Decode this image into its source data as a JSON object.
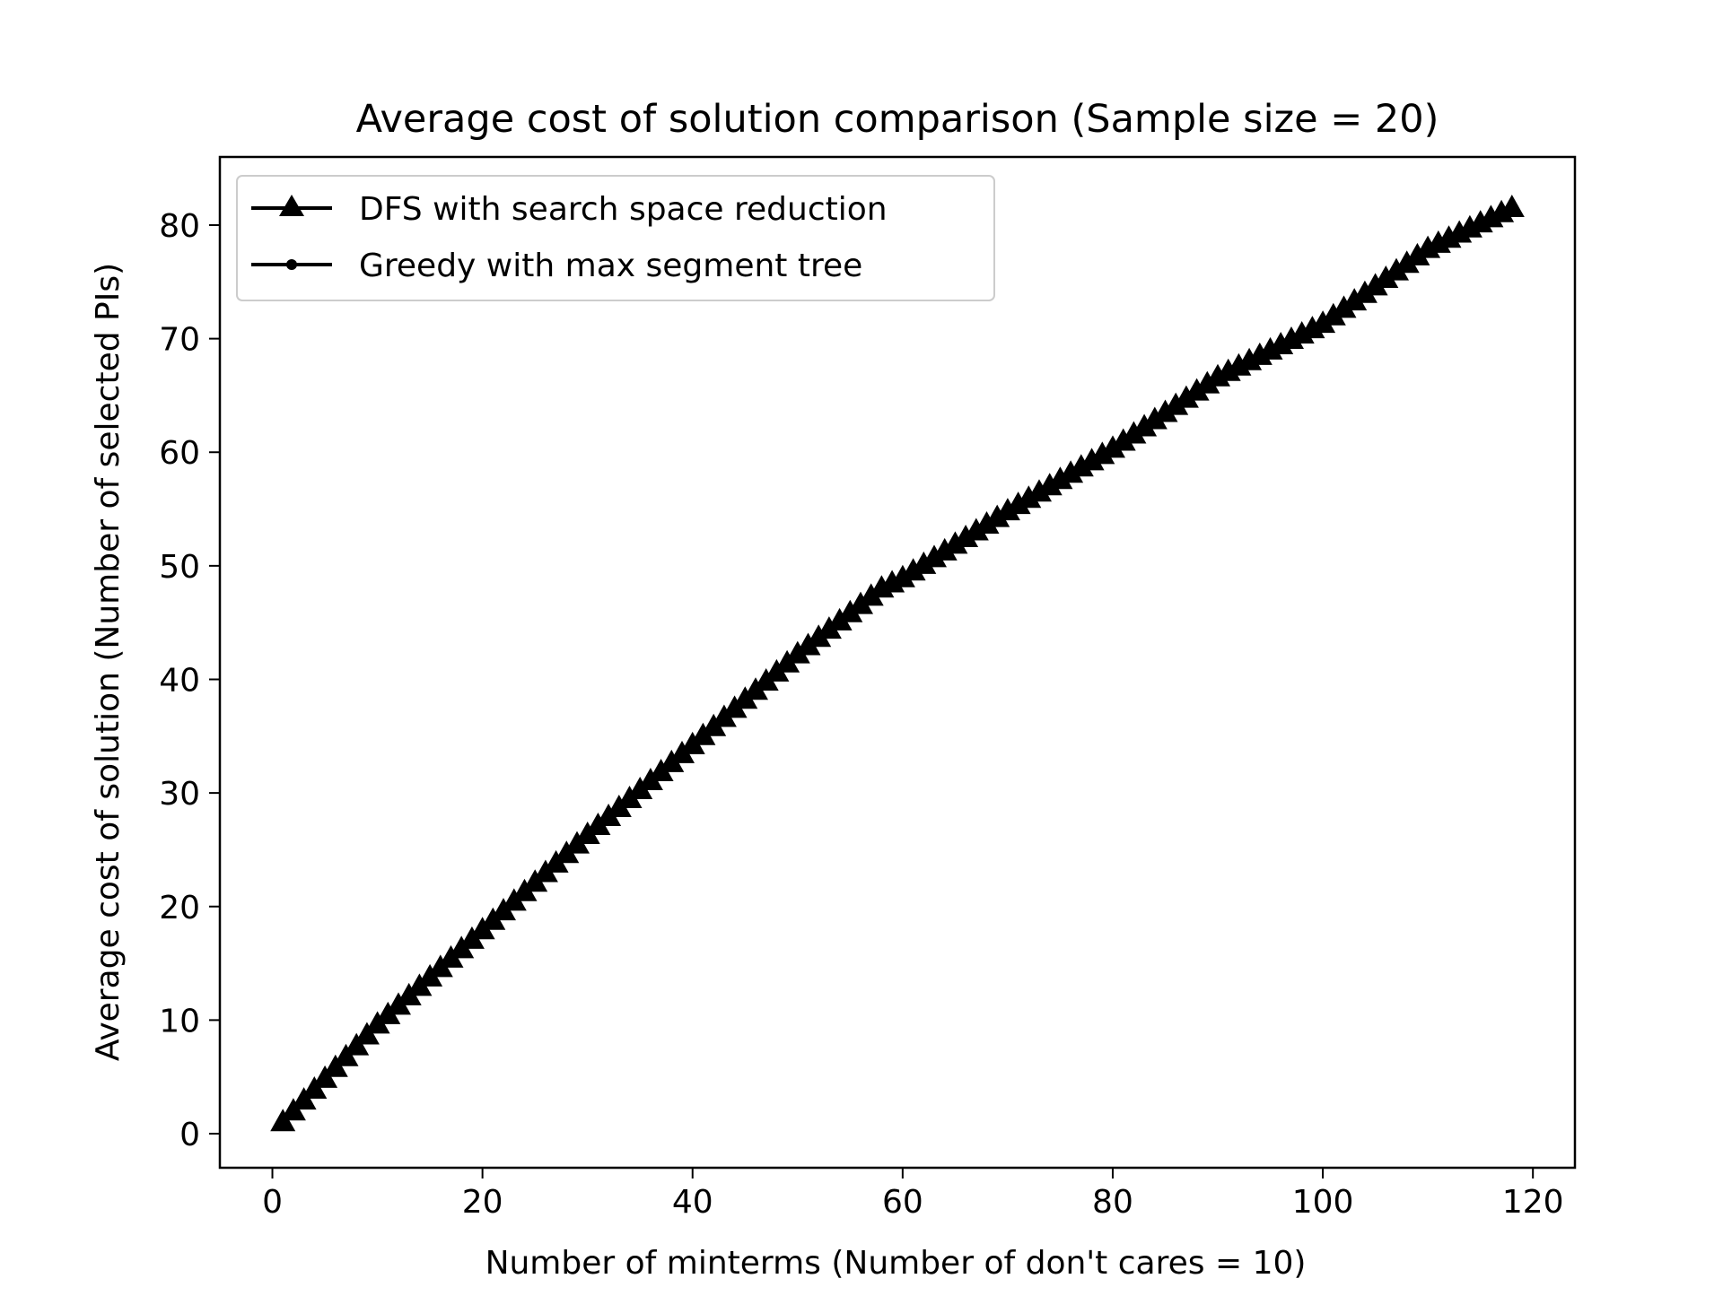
{
  "chart_data": {
    "type": "line",
    "title": "Average cost of solution comparison (Sample size = 20)",
    "xlabel": "Number of minterms (Number of don't cares = 10)",
    "ylabel": "Average cost of solution (Number of selected PIs)",
    "xlim": [
      -5,
      124
    ],
    "ylim": [
      -3,
      86
    ],
    "xticks": [
      0,
      20,
      40,
      60,
      80,
      100,
      120
    ],
    "yticks": [
      0,
      10,
      20,
      30,
      40,
      50,
      60,
      70,
      80
    ],
    "grid": false,
    "legend_position": "top-left",
    "x_start": 1,
    "x_end": 118,
    "x_step": 1,
    "anchors_x": [
      1,
      10,
      20,
      30,
      40,
      50,
      58,
      60,
      70,
      80,
      90,
      100,
      110,
      118
    ],
    "anchors_y": [
      1,
      9.6,
      17.9,
      26.3,
      34.2,
      42.2,
      48,
      48.9,
      54.8,
      60.3,
      66.6,
      71.3,
      77.9,
      81.5
    ],
    "series": [
      {
        "name": "DFS with search space reduction",
        "marker": "triangle",
        "color": "#000000"
      },
      {
        "name": "Greedy with max segment tree",
        "marker": "circle",
        "color": "#000000"
      }
    ]
  }
}
